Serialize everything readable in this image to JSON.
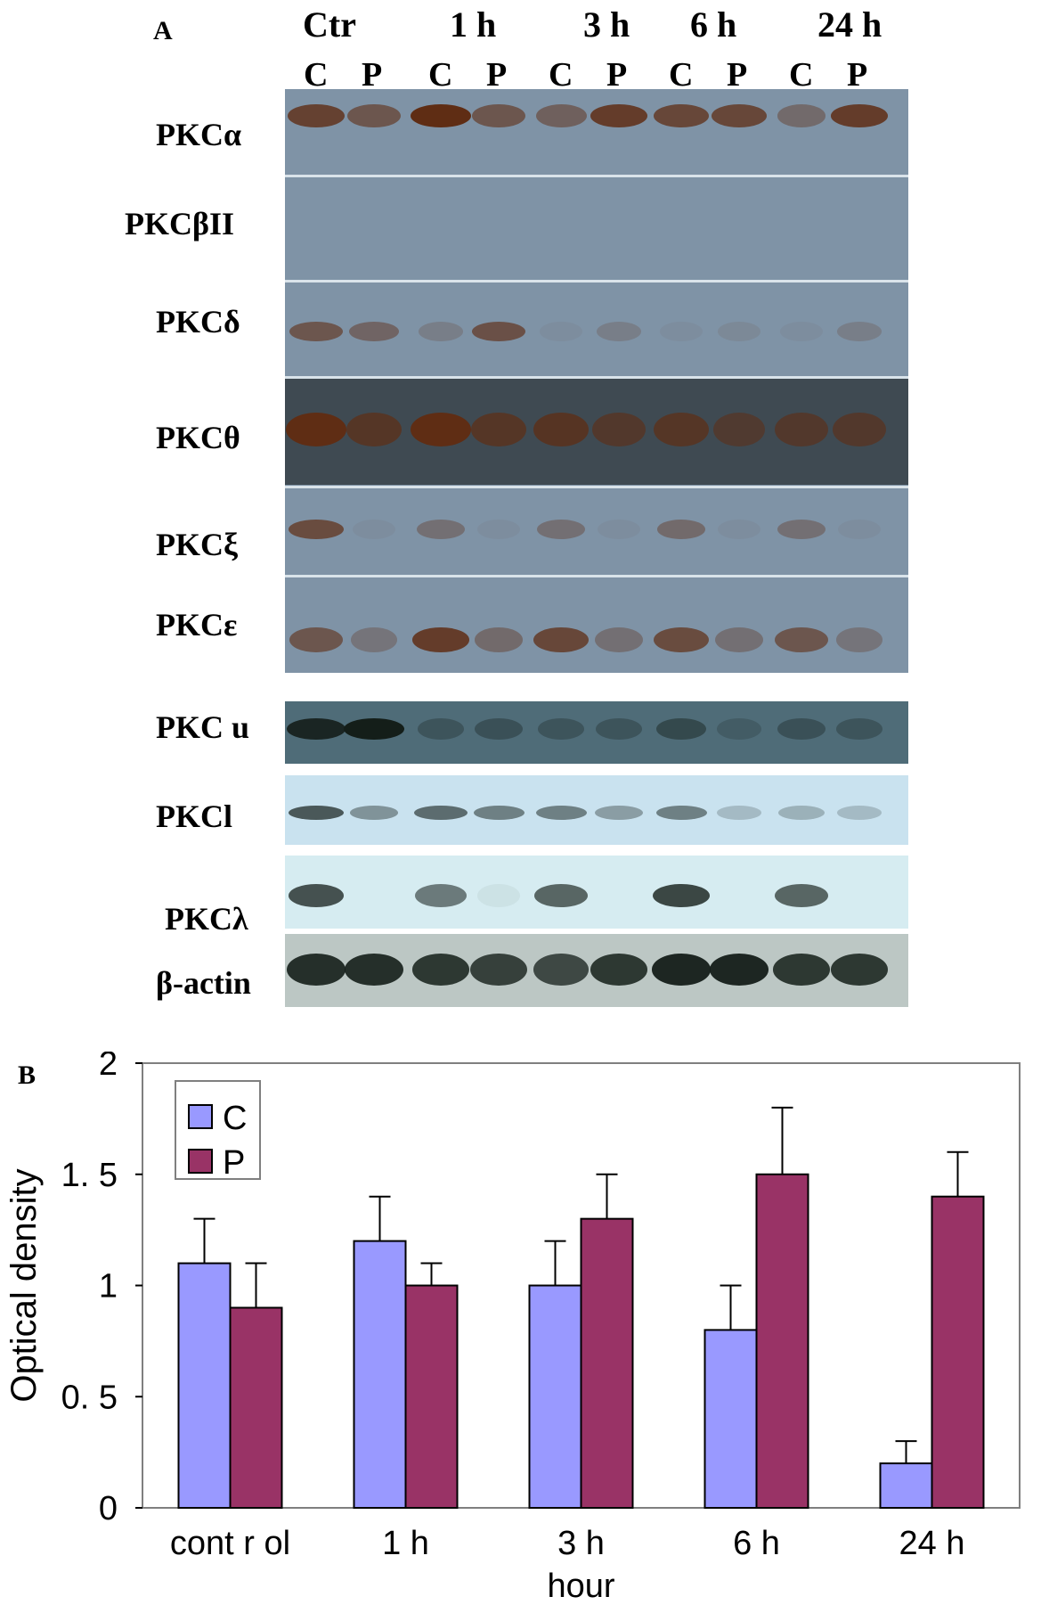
{
  "panel_a": {
    "letter": "A",
    "time_labels": [
      "Ctr",
      "1 h",
      "3 h",
      "6 h",
      "24 h"
    ],
    "lane_labels": [
      "C",
      "P",
      "C",
      "P",
      "C",
      "P",
      "C",
      "P",
      "C",
      "P"
    ],
    "rows": [
      {
        "label": "PKCα",
        "band_intensity": [
          0.8,
          0.6,
          1.0,
          0.6,
          0.5,
          0.85,
          0.75,
          0.75,
          0.4,
          0.85
        ]
      },
      {
        "label": "PKCβII",
        "band_intensity": [
          0,
          0,
          0,
          0,
          0,
          0,
          0,
          0,
          0,
          0
        ]
      },
      {
        "label": "PKCδ",
        "band_intensity": [
          0.6,
          0.45,
          0.2,
          0.65,
          0.05,
          0.2,
          0.05,
          0.1,
          0.05,
          0.2
        ]
      },
      {
        "label": "PKCθ",
        "band_intensity": [
          1.0,
          0.7,
          1.0,
          0.7,
          0.75,
          0.6,
          0.7,
          0.55,
          0.6,
          0.6
        ]
      },
      {
        "label": "PKCξ",
        "band_intensity": [
          0.7,
          0.05,
          0.35,
          0.05,
          0.35,
          0.05,
          0.4,
          0.05,
          0.35,
          0.05
        ]
      },
      {
        "label": "PKCε",
        "band_intensity": [
          0.6,
          0.3,
          0.85,
          0.4,
          0.75,
          0.35,
          0.7,
          0.35,
          0.6,
          0.3
        ]
      },
      {
        "label": "PKC u",
        "band_intensity": [
          0.9,
          1.0,
          0.3,
          0.35,
          0.3,
          0.3,
          0.45,
          0.2,
          0.35,
          0.3
        ]
      },
      {
        "label": "PKCl",
        "band_intensity": [
          0.7,
          0.4,
          0.6,
          0.5,
          0.5,
          0.35,
          0.5,
          0.2,
          0.25,
          0.2
        ]
      },
      {
        "label": "PKCλ",
        "band_intensity": [
          0.75,
          0,
          0.55,
          0.05,
          0.65,
          0,
          0.8,
          0,
          0.65,
          0
        ]
      },
      {
        "label": "β-actin",
        "band_intensity": [
          0.9,
          0.9,
          0.85,
          0.8,
          0.75,
          0.85,
          0.95,
          0.95,
          0.85,
          0.85
        ]
      }
    ]
  },
  "panel_b": {
    "letter": "B"
  },
  "colors": {
    "C": "#9999ff",
    "P": "#993366"
  },
  "chart_data": {
    "type": "bar",
    "categories": [
      "cont r ol",
      "1 h",
      "3 h",
      "6 h",
      "24 h"
    ],
    "series": [
      {
        "name": "C",
        "values": [
          1.1,
          1.2,
          1.0,
          0.8,
          0.2
        ],
        "errors": [
          0.2,
          0.2,
          0.2,
          0.2,
          0.1
        ]
      },
      {
        "name": "P",
        "values": [
          0.9,
          1.0,
          1.3,
          1.5,
          1.4
        ],
        "errors": [
          0.2,
          0.1,
          0.2,
          0.3,
          0.2
        ]
      }
    ],
    "xlabel": "hour",
    "ylabel": "Optical density",
    "ylim": [
      0,
      2
    ],
    "yticks": [
      "0",
      "0. 5",
      "1",
      "1. 5",
      "2"
    ],
    "legend": "top-left",
    "grid": false
  }
}
